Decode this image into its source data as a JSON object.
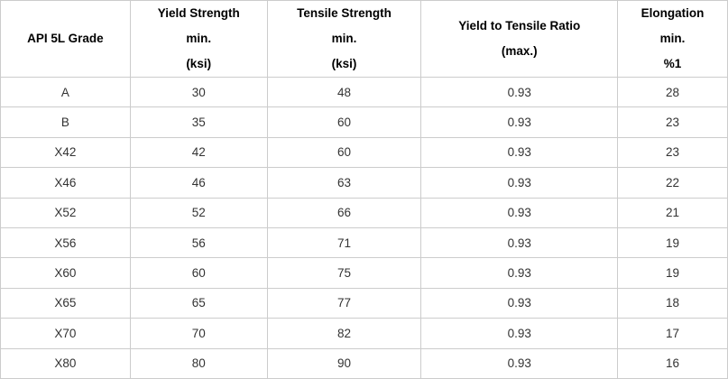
{
  "table": {
    "name": "API 5L grade mechanical properties table",
    "border_color": "#cccccc",
    "header_text_color": "#000000",
    "cell_text_color": "#333333",
    "columns": [
      {
        "lines": [
          "API 5L Grade"
        ]
      },
      {
        "lines": [
          "Yield Strength",
          "min.",
          "(ksi)"
        ]
      },
      {
        "lines": [
          "Tensile Strength",
          "min.",
          "(ksi)"
        ]
      },
      {
        "lines": [
          "Yield to Tensile Ratio",
          "(max.)"
        ]
      },
      {
        "lines": [
          "Elongation",
          "min.",
          "%1"
        ]
      }
    ],
    "rows": [
      [
        "A",
        "30",
        "48",
        "0.93",
        "28"
      ],
      [
        "B",
        "35",
        "60",
        "0.93",
        "23"
      ],
      [
        "X42",
        "42",
        "60",
        "0.93",
        "23"
      ],
      [
        "X46",
        "46",
        "63",
        "0.93",
        "22"
      ],
      [
        "X52",
        "52",
        "66",
        "0.93",
        "21"
      ],
      [
        "X56",
        "56",
        "71",
        "0.93",
        "19"
      ],
      [
        "X60",
        "60",
        "75",
        "0.93",
        "19"
      ],
      [
        "X65",
        "65",
        "77",
        "0.93",
        "18"
      ],
      [
        "X70",
        "70",
        "82",
        "0.93",
        "17"
      ],
      [
        "X80",
        "80",
        "90",
        "0.93",
        "16"
      ]
    ]
  }
}
